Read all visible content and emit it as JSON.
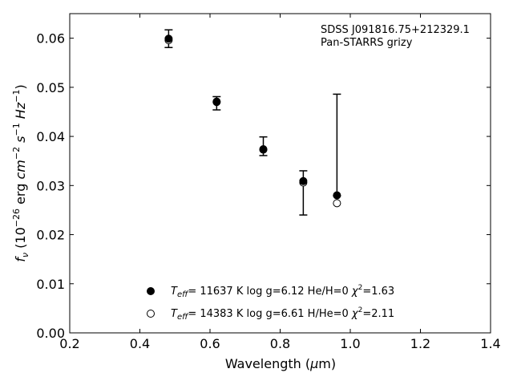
{
  "chart_data": {
    "type": "scatter",
    "xlabel": "Wavelength (μm)",
    "ylabel": "f_ν (10^-26 erg cm^-2 s^-1 Hz^-1)",
    "xlim": [
      0.2,
      1.4
    ],
    "ylim": [
      0.0,
      0.065
    ],
    "xticks": [
      "0.2",
      "0.4",
      "0.6",
      "0.8",
      "1.0",
      "1.2",
      "1.4"
    ],
    "yticks": [
      "0.00",
      "0.01",
      "0.02",
      "0.03",
      "0.04",
      "0.05",
      "0.06"
    ],
    "annotation": [
      "SDSS J091816.75+212329.1",
      "Pan-STARRS grizy"
    ],
    "observed": {
      "x": [
        0.482,
        0.619,
        0.752,
        0.866,
        0.962
      ],
      "y": [
        0.0597,
        0.0472,
        0.0375,
        0.0311,
        0.0281
      ],
      "err_low": [
        0.0581,
        0.0454,
        0.0361,
        0.024,
        0.0279
      ],
      "err_high": [
        0.0617,
        0.0481,
        0.0399,
        0.033,
        0.0486
      ]
    },
    "series": [
      {
        "name": "T_eff= 11637 K  log g=6.12  He/H=0  χ²=1.63",
        "marker": "filled",
        "x": [
          0.482,
          0.619,
          0.752,
          0.866,
          0.962
        ],
        "y": [
          0.0599,
          0.047,
          0.0373,
          0.0309,
          0.028
        ]
      },
      {
        "name": "T_eff= 14383 K  log g=6.61  H/He=0  χ²=2.11",
        "marker": "open",
        "x": [
          0.482,
          0.619,
          0.752,
          0.866,
          0.962
        ],
        "y": [
          0.0596,
          0.0471,
          0.0374,
          0.0306,
          0.0264
        ]
      }
    ],
    "legend": [
      {
        "marker": "filled",
        "teff_value": "= 11637 K  log g=6.12  He/H=0  ",
        "chi_value": "=1.63"
      },
      {
        "marker": "open",
        "teff_value": "= 14383 K  log g=6.61  H/He=0  ",
        "chi_value": "=2.11"
      }
    ],
    "legend_position": "lower-center",
    "grid": false,
    "colors": {
      "marker": "#000000",
      "axes": "#000000"
    }
  }
}
